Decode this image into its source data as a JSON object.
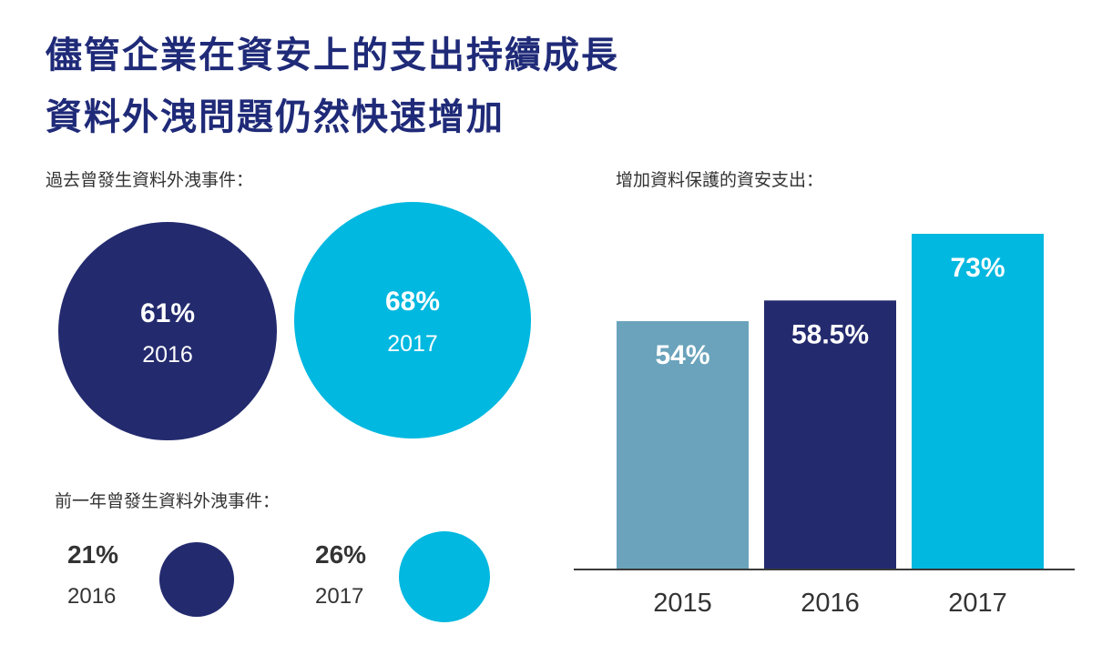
{
  "titles": {
    "line1": "儘管企業在資安上的支出持續成長",
    "line2": "資料外洩問題仍然快速增加"
  },
  "colors": {
    "navy": "#232a6e",
    "cyan": "#00b8e0",
    "steel": "#6aa3bb",
    "title": "#1f2a78"
  },
  "chart_data": [
    {
      "type": "bubble",
      "title": "過去曾發生資料外洩事件：",
      "items": [
        {
          "year": "2016",
          "value": 61,
          "label": "61%",
          "color": "#232a6e"
        },
        {
          "year": "2017",
          "value": 68,
          "label": "68%",
          "color": "#00b8e0"
        }
      ]
    },
    {
      "type": "bubble",
      "title": "前一年曾發生資料外洩事件：",
      "items": [
        {
          "year": "2016",
          "value": 21,
          "label": "21%",
          "color": "#232a6e"
        },
        {
          "year": "2017",
          "value": 26,
          "label": "26%",
          "color": "#00b8e0"
        }
      ]
    },
    {
      "type": "bar",
      "title": "增加資料保護的資安支出：",
      "categories": [
        "2015",
        "2016",
        "2017"
      ],
      "values": [
        54,
        58.5,
        73
      ],
      "labels": [
        "54%",
        "58.5%",
        "73%"
      ],
      "colors": [
        "#6aa3bb",
        "#232a6e",
        "#00b8e0"
      ],
      "ylim": [
        0,
        73
      ],
      "grid": false,
      "yaxis": false
    }
  ]
}
